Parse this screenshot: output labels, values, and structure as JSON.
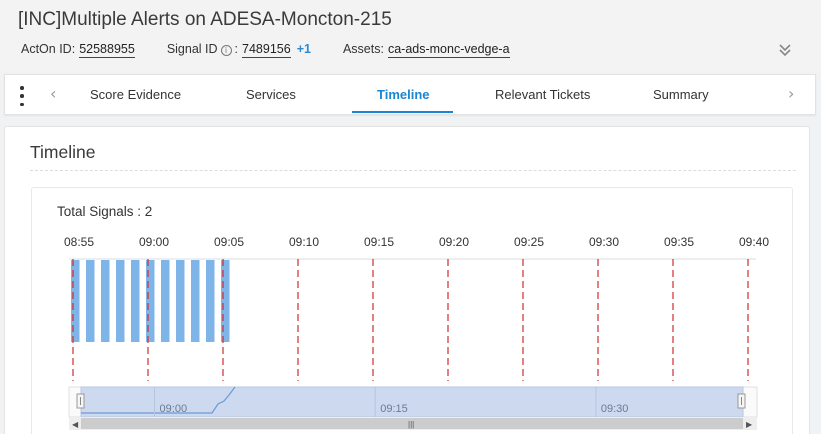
{
  "header": {
    "title": "[INC]Multiple Alerts on ADESA-Moncton-215",
    "acton_label": "ActOn ID:",
    "acton_id": "52588955",
    "signal_label": "Signal ID",
    "signal_id": "7489156",
    "signal_extra": "+1",
    "assets_label": "Assets:",
    "assets_value": "ca-ads-monc-vedge-a"
  },
  "tabs": [
    {
      "label": "Score Evidence",
      "active": false
    },
    {
      "label": "Services",
      "active": false
    },
    {
      "label": "Timeline",
      "active": true
    },
    {
      "label": "Relevant Tickets",
      "active": false
    },
    {
      "label": "Summary",
      "active": false
    }
  ],
  "panel": {
    "title": "Timeline",
    "total_signals": "Total Signals : 2"
  },
  "colors": {
    "accent": "#1a86d0",
    "bar": "#7fb4e8",
    "marker": "#d22b2b",
    "zoom_fill": "#cdd9ef"
  },
  "chart_data": {
    "type": "bar",
    "x_ticks": [
      "08:55",
      "09:00",
      "09:05",
      "09:10",
      "09:15",
      "09:20",
      "09:25",
      "09:30",
      "09:35",
      "09:40"
    ],
    "bars": [
      {
        "time": "08:55"
      },
      {
        "time": "08:56"
      },
      {
        "time": "08:57"
      },
      {
        "time": "08:58"
      },
      {
        "time": "08:59"
      },
      {
        "time": "09:00"
      },
      {
        "time": "09:01"
      },
      {
        "time": "09:02"
      },
      {
        "time": "09:03"
      },
      {
        "time": "09:04"
      },
      {
        "time": "09:05"
      }
    ],
    "zoom": {
      "labels": [
        "09:00",
        "09:15",
        "09:30"
      ]
    }
  }
}
